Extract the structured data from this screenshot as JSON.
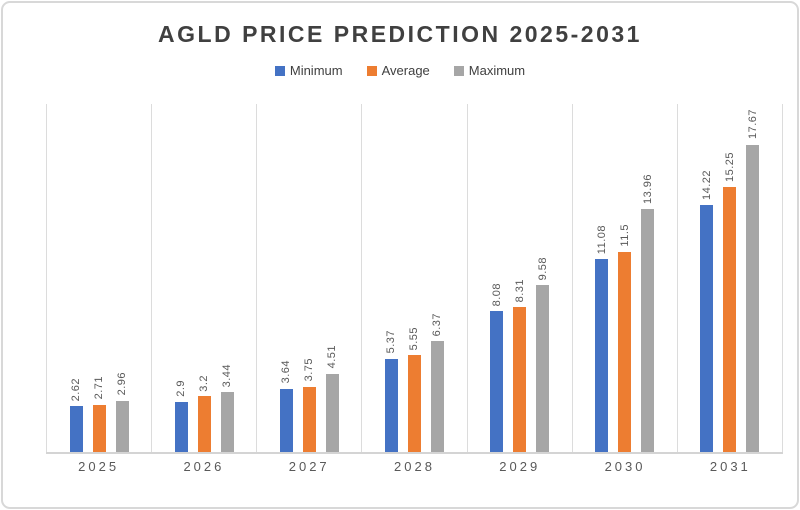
{
  "chart_data": {
    "type": "bar",
    "title": "AGLD PRICE PREDICTION 2025-2031",
    "categories": [
      "2025",
      "2026",
      "2027",
      "2028",
      "2029",
      "2030",
      "2031"
    ],
    "series": [
      {
        "name": "Minimum",
        "color": "#4472C4",
        "values": [
          2.62,
          2.9,
          3.64,
          5.37,
          8.08,
          11.08,
          14.22
        ],
        "labels": [
          "2.62",
          "2.9",
          "3.64",
          "5.37",
          "8.08",
          "11.08",
          "14.22"
        ]
      },
      {
        "name": "Average",
        "color": "#ED7D31",
        "values": [
          2.71,
          3.2,
          3.75,
          5.55,
          8.31,
          11.5,
          15.25
        ],
        "labels": [
          "2.71",
          "3.2",
          "3.75",
          "5.55",
          "8.31",
          "11.5",
          "15.25"
        ]
      },
      {
        "name": "Maximum",
        "color": "#A6A6A6",
        "values": [
          2.96,
          3.44,
          4.51,
          6.37,
          9.58,
          13.96,
          17.67
        ],
        "labels": [
          "2.96",
          "3.44",
          "4.51",
          "6.37",
          "9.58",
          "13.96",
          "17.67"
        ]
      }
    ],
    "xlabel": "",
    "ylabel": "",
    "ylim": [
      0,
      20
    ],
    "grid": "vertical category separators only",
    "legend_position": "top-center",
    "value_label_rotation": "vertical"
  },
  "colors": {
    "minimum_bar": "#4472C4",
    "average_bar": "#ED7D31",
    "maximum_bar": "#A6A6A6",
    "title_text": "#404040",
    "axis_text": "#595959",
    "gridline": "#DCDCDC",
    "baseline": "#D4D4D4",
    "frame_border": "#D8D8D8"
  }
}
